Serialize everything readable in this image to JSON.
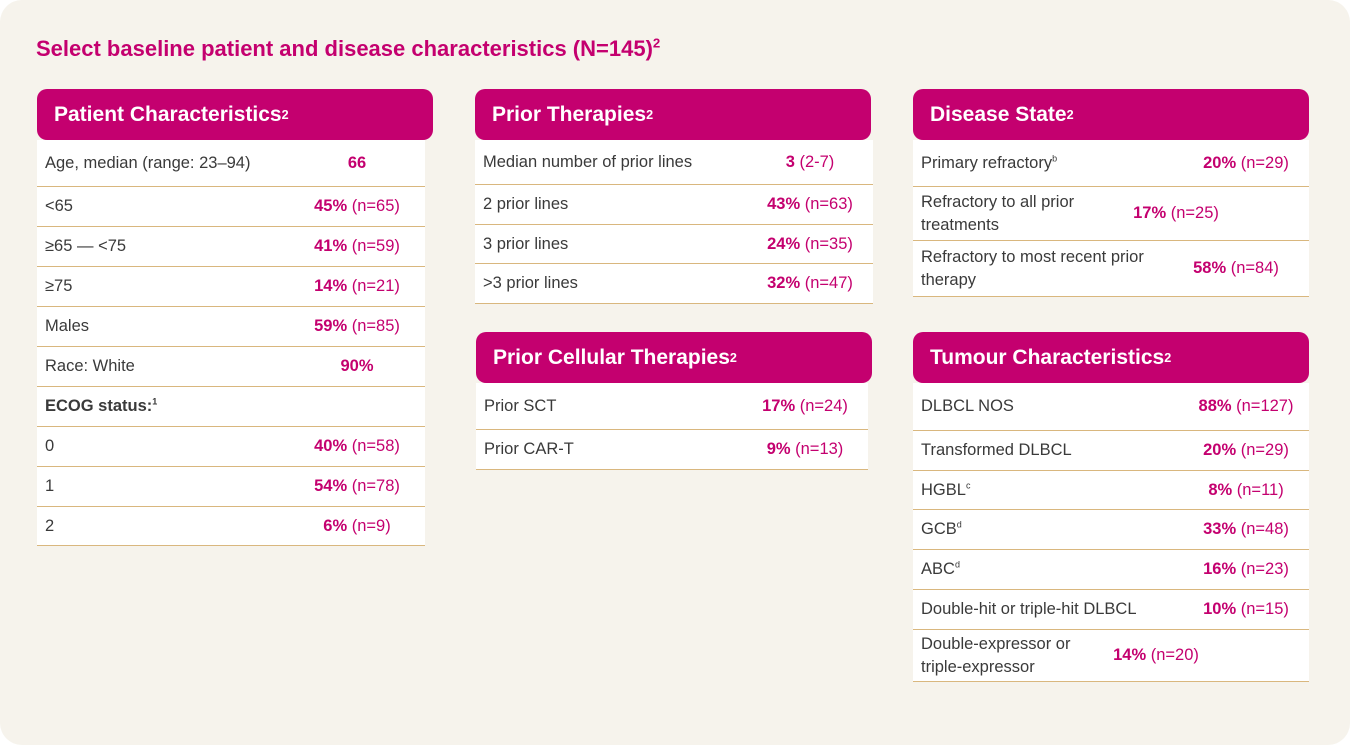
{
  "title": {
    "text": "Select baseline patient and disease characteristics (N=145)",
    "sup": "2"
  },
  "patient": {
    "header": "Patient Characteristics",
    "header_sup": "2",
    "rows": [
      {
        "label": "Age, median (range: 23–94)",
        "pct": "66",
        "n": ""
      },
      {
        "label": "<65",
        "pct": "45%",
        "n": " (n=65)"
      },
      {
        "label": "≥65 — <75",
        "pct": "41%",
        "n": " (n=59)"
      },
      {
        "label": "≥75",
        "pct": "14%",
        "n": " (n=21)"
      },
      {
        "label": "Males",
        "pct": "59%",
        "n": " (n=85)"
      },
      {
        "label": "Race: White",
        "pct": "90%",
        "n": ""
      },
      {
        "label": "ECOG status:",
        "sup": "1",
        "pct": "",
        "n": ""
      },
      {
        "label": "0",
        "pct": "40%",
        "n": " (n=58)"
      },
      {
        "label": "1",
        "pct": "54%",
        "n": " (n=78)"
      },
      {
        "label": "2",
        "pct": "6%",
        "n": " (n=9)"
      }
    ]
  },
  "prior": {
    "header": "Prior Therapies",
    "header_sup": "2",
    "rows": [
      {
        "label": "Median number of prior lines",
        "pct": "3",
        "n": " (2-7)"
      },
      {
        "label": "2 prior lines",
        "pct": "43%",
        "n": " (n=63)"
      },
      {
        "label": "3 prior lines",
        "pct": "24%",
        "n": " (n=35)"
      },
      {
        "label": ">3 prior lines",
        "pct": "32%",
        "n": " (n=47)"
      }
    ]
  },
  "cellular": {
    "header": "Prior Cellular Therapies",
    "header_sup": "2",
    "rows": [
      {
        "label": "Prior SCT",
        "pct": "17%",
        "n": " (n=24)"
      },
      {
        "label": "Prior CAR-T",
        "pct": "9%",
        "n": " (n=13)"
      }
    ]
  },
  "disease": {
    "header": "Disease State",
    "header_sup": "2",
    "rows": [
      {
        "label": "Primary refractory",
        "sup": "b",
        "pct": "20%",
        "n": " (n=29)"
      },
      {
        "label": "Refractory to all prior treatments",
        "pct": "17%",
        "n": " (n=25)"
      },
      {
        "label": "Refractory to most recent prior therapy",
        "pct": "58%",
        "n": " (n=84)"
      }
    ]
  },
  "tumour": {
    "header": "Tumour Characteristics",
    "header_sup": "2",
    "rows": [
      {
        "label": "DLBCL NOS",
        "pct": "88%",
        "n": " (n=127)"
      },
      {
        "label": "Transformed DLBCL",
        "pct": "20%",
        "n": " (n=29)"
      },
      {
        "label": "HGBL",
        "sup": "c",
        "pct": "8%",
        "n": " (n=11)"
      },
      {
        "label": "GCB",
        "sup": "d",
        "pct": "33%",
        "n": " (n=48)"
      },
      {
        "label": "ABC",
        "sup": "d",
        "pct": "16%",
        "n": " (n=23)"
      },
      {
        "label": "Double-hit or triple-hit DLBCL",
        "pct": "10%",
        "n": " (n=15)"
      },
      {
        "label": "Double-expressor or triple-expressor",
        "pct": "14%",
        "n": " (n=20)"
      }
    ]
  },
  "colors": {
    "accent": "#c4006f",
    "background": "#f6f3ec",
    "rule": "#d9b77e"
  }
}
